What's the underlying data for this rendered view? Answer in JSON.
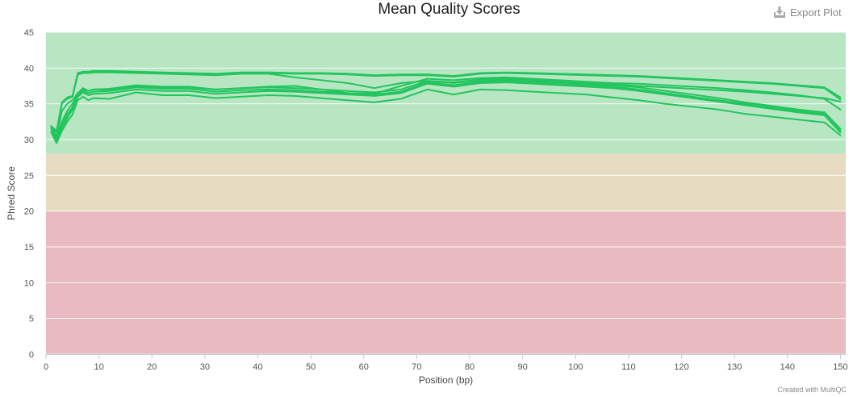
{
  "header": {
    "title": "Mean Quality Scores",
    "export_label": "Export Plot"
  },
  "footer": {
    "credits": "Created with MultiQC"
  },
  "colors": {
    "good_band": "#b8e6c3",
    "warn_band": "#e6dcc1",
    "bad_band": "#e9bbc0",
    "series": "#22c55e"
  },
  "chart_data": {
    "type": "line",
    "title": "Mean Quality Scores",
    "xlabel": "Position (bp)",
    "ylabel": "Phred Score",
    "xlim": [
      0,
      151
    ],
    "ylim": [
      0,
      45
    ],
    "x_ticks": [
      0,
      10,
      20,
      30,
      40,
      50,
      60,
      70,
      80,
      90,
      100,
      110,
      120,
      130,
      140,
      150
    ],
    "y_ticks": [
      0,
      5,
      10,
      15,
      20,
      25,
      30,
      35,
      40,
      45
    ],
    "grid": true,
    "legend": "none",
    "bands": [
      {
        "from": 28,
        "to": 45,
        "color": "#b8e6c3"
      },
      {
        "from": 20,
        "to": 28,
        "color": "#e6dcc1"
      },
      {
        "from": 0,
        "to": 20,
        "color": "#e9bbc0"
      }
    ],
    "x": [
      1,
      2,
      3,
      4,
      5,
      6,
      7,
      8,
      9,
      12,
      17,
      22,
      27,
      32,
      37,
      42,
      47,
      52,
      57,
      62,
      67,
      72,
      77,
      82,
      87,
      92,
      97,
      102,
      107,
      112,
      117,
      122,
      127,
      132,
      137,
      142,
      147,
      150
    ],
    "series": [
      {
        "values": [
          31.8,
          29.8,
          32.0,
          33.5,
          34.5,
          36.5,
          37.2,
          36.8,
          37.0,
          37.1,
          37.6,
          37.4,
          37.4,
          37.0,
          37.2,
          37.3,
          37.2,
          37.0,
          36.8,
          36.6,
          37.0,
          38.2,
          37.9,
          38.3,
          38.4,
          38.2,
          38.0,
          37.8,
          37.6,
          37.3,
          36.8,
          36.3,
          35.8,
          35.2,
          34.7,
          34.2,
          33.8,
          31.5
        ]
      },
      {
        "values": [
          31.5,
          30.2,
          32.5,
          34.0,
          35.0,
          36.2,
          36.8,
          36.5,
          36.7,
          36.8,
          37.3,
          37.1,
          37.1,
          36.7,
          36.9,
          37.0,
          36.9,
          36.7,
          36.5,
          36.3,
          36.7,
          38.0,
          37.6,
          38.1,
          38.2,
          38.0,
          37.8,
          37.6,
          37.4,
          37.0,
          36.5,
          36.0,
          35.5,
          35.0,
          34.5,
          34.0,
          33.6,
          31.3
        ]
      },
      {
        "values": [
          31.2,
          29.6,
          31.5,
          33.0,
          34.2,
          36.0,
          36.6,
          36.2,
          36.4,
          36.5,
          37.0,
          36.8,
          36.8,
          36.4,
          36.6,
          36.8,
          36.7,
          36.5,
          36.3,
          36.1,
          36.5,
          37.8,
          37.4,
          37.9,
          38.0,
          37.8,
          37.6,
          37.4,
          37.2,
          36.8,
          36.3,
          35.8,
          35.3,
          34.8,
          34.3,
          33.8,
          33.4,
          31.0
        ]
      },
      {
        "values": [
          31.0,
          29.5,
          31.2,
          32.5,
          33.5,
          35.5,
          36.0,
          35.5,
          35.8,
          35.7,
          36.6,
          36.2,
          36.2,
          35.8,
          36.0,
          36.2,
          36.1,
          35.8,
          35.5,
          35.2,
          35.7,
          37.0,
          36.3,
          37.0,
          36.9,
          36.7,
          36.5,
          36.3,
          35.9,
          35.5,
          35.0,
          34.6,
          34.2,
          33.6,
          33.2,
          32.8,
          32.4,
          30.6
        ]
      },
      {
        "values": [
          31.6,
          30.5,
          34.0,
          35.0,
          35.5,
          36.5,
          37.0,
          36.8,
          37.0,
          37.0,
          37.5,
          37.3,
          37.3,
          37.0,
          37.2,
          37.4,
          37.5,
          37.0,
          36.5,
          36.4,
          37.5,
          38.5,
          38.3,
          38.6,
          38.7,
          38.5,
          38.3,
          38.1,
          37.9,
          37.8,
          37.6,
          37.4,
          37.2,
          36.9,
          36.6,
          36.2,
          35.7,
          34.2
        ]
      },
      {
        "values": [
          31.7,
          31.0,
          35.0,
          35.8,
          36.0,
          39.2,
          39.4,
          39.4,
          39.5,
          39.5,
          39.4,
          39.3,
          39.2,
          39.1,
          39.3,
          39.3,
          39.2,
          39.2,
          39.1,
          38.9,
          39.0,
          39.0,
          38.8,
          39.2,
          39.3,
          39.2,
          39.1,
          39.0,
          38.9,
          38.8,
          38.6,
          38.4,
          38.2,
          38.0,
          37.8,
          37.5,
          37.2,
          35.6
        ]
      },
      {
        "values": [
          31.9,
          31.2,
          35.2,
          35.9,
          36.1,
          39.3,
          39.5,
          39.5,
          39.6,
          39.6,
          39.5,
          39.4,
          39.3,
          39.2,
          39.4,
          39.4,
          39.3,
          39.3,
          39.2,
          39.0,
          39.1,
          39.1,
          38.9,
          39.3,
          39.4,
          39.3,
          39.2,
          39.1,
          39.0,
          38.9,
          38.7,
          38.5,
          38.3,
          38.1,
          37.9,
          37.6,
          37.3,
          35.9
        ]
      },
      {
        "values": [
          31.8,
          31.1,
          35.1,
          35.7,
          36.0,
          39.1,
          39.3,
          39.3,
          39.4,
          39.4,
          39.3,
          39.2,
          39.1,
          39.0,
          39.2,
          39.2,
          38.7,
          38.3,
          37.9,
          37.2,
          37.9,
          38.2,
          38.0,
          38.4,
          38.5,
          38.3,
          38.1,
          37.9,
          37.7,
          37.5,
          37.3,
          37.1,
          36.9,
          36.7,
          36.4,
          36.1,
          35.8,
          35.3
        ]
      }
    ]
  }
}
